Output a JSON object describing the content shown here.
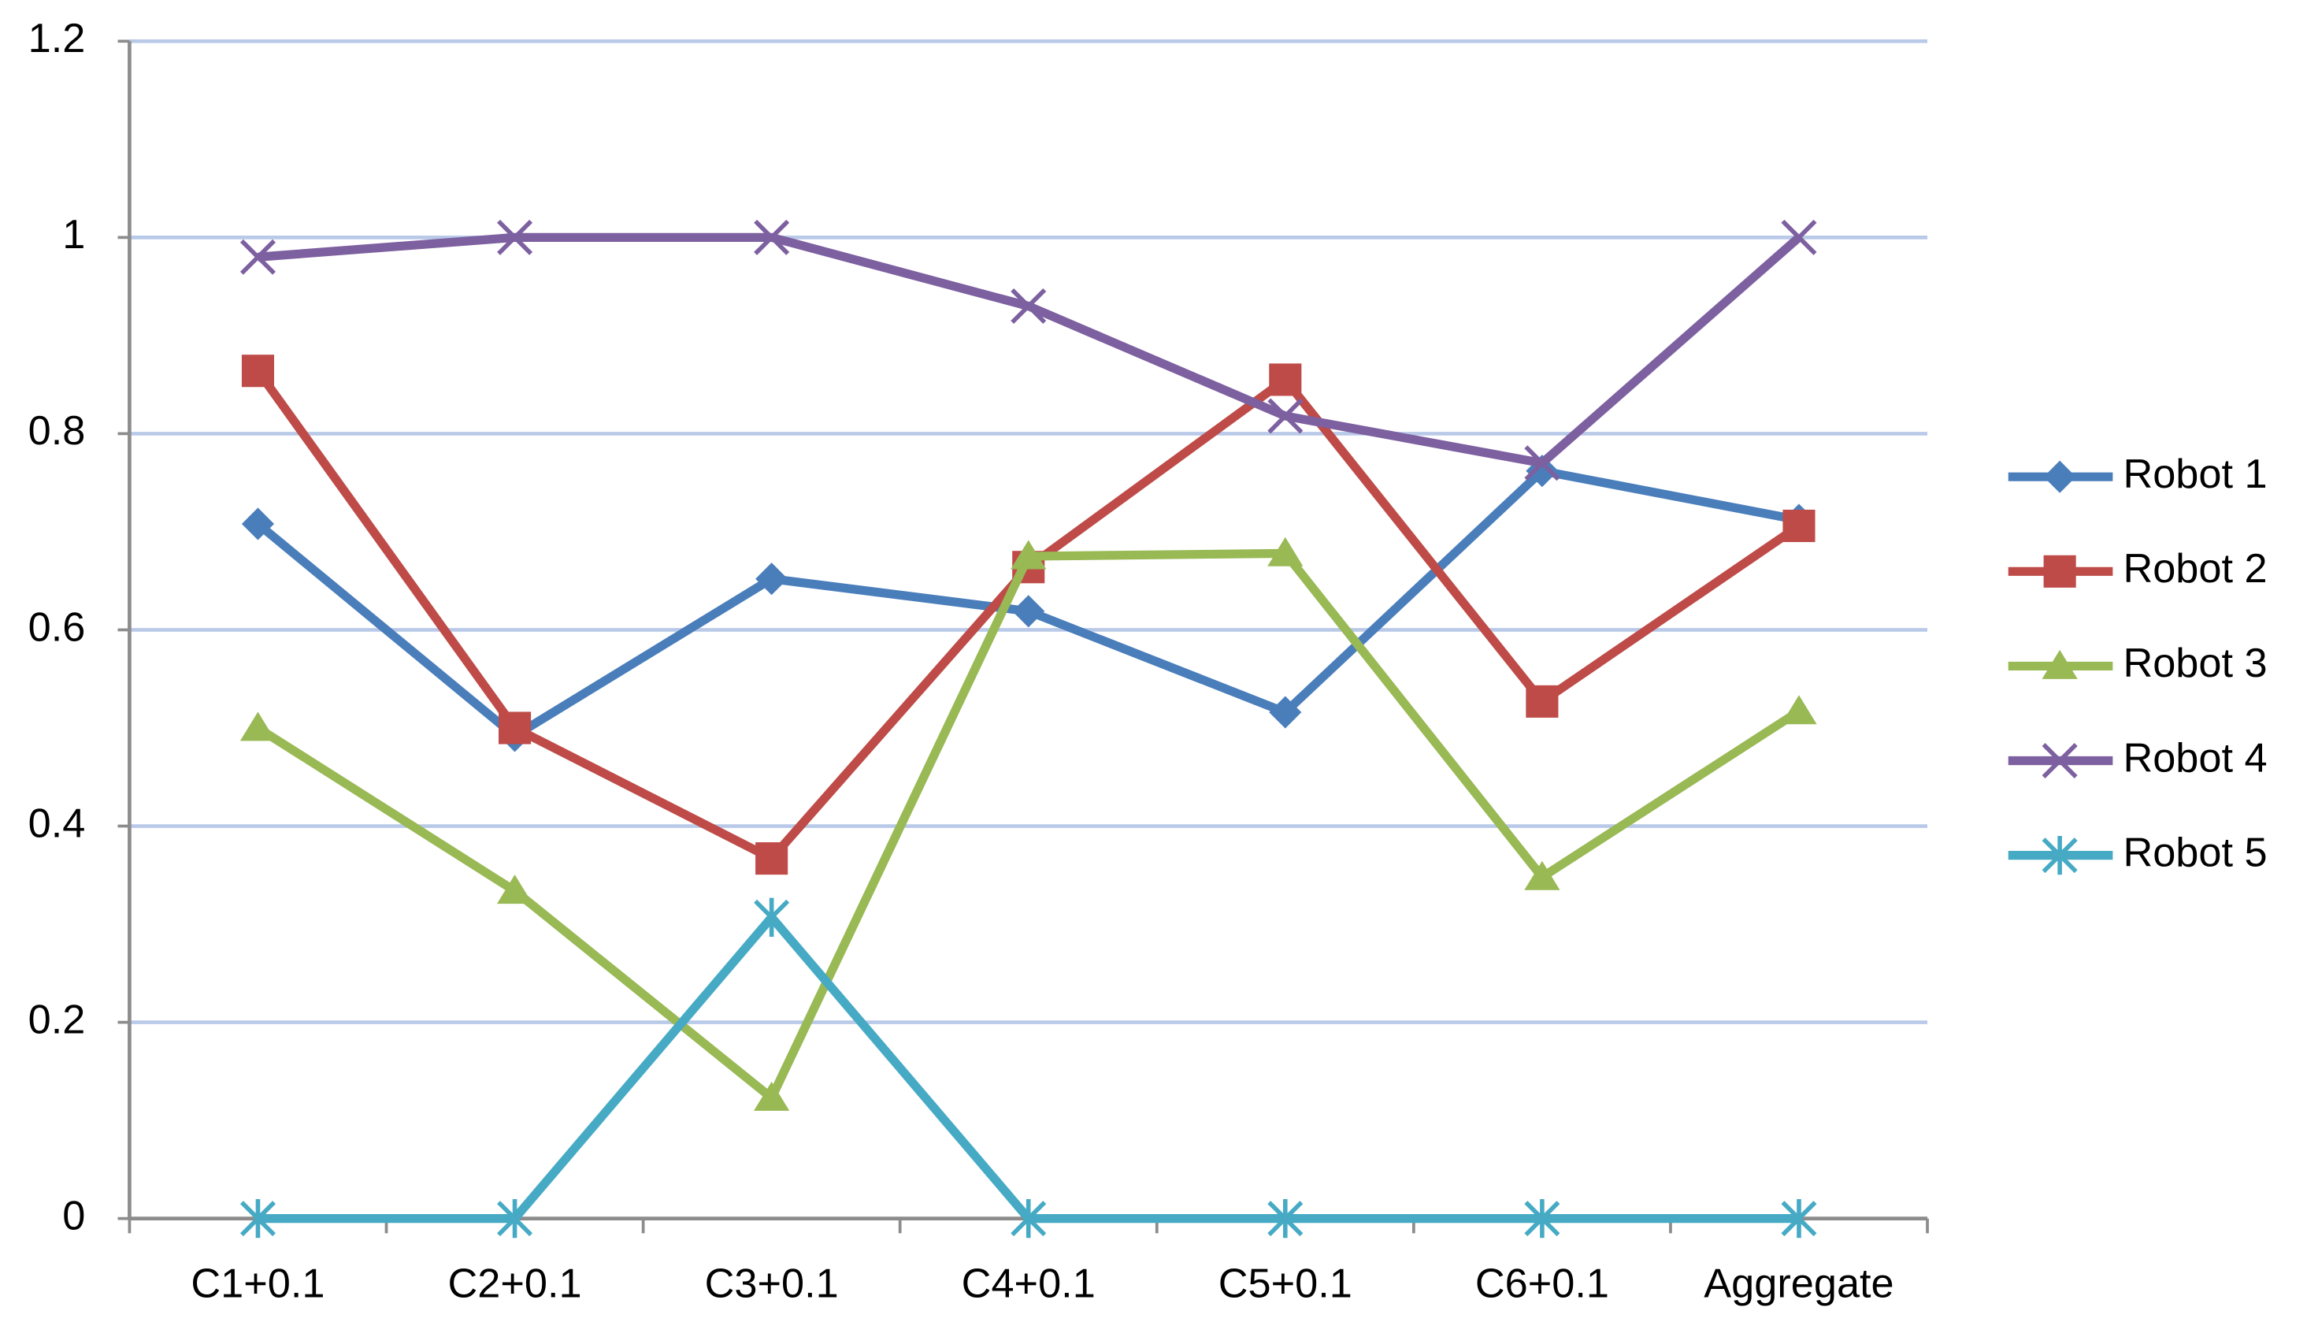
{
  "chart_data": {
    "type": "line",
    "categories": [
      "C1+0.1",
      "C2+0.1",
      "C3+0.1",
      "C4+0.1",
      "C5+0.1",
      "C6+0.1",
      "Aggregate"
    ],
    "series": [
      {
        "name": "Robot 1",
        "color": "#4a7ebb",
        "marker": "diamond",
        "values": [
          0.708,
          0.492,
          0.652,
          0.619,
          0.516,
          0.762,
          0.712
        ]
      },
      {
        "name": "Robot 2",
        "color": "#be4b48",
        "marker": "square",
        "values": [
          0.864,
          0.5,
          0.367,
          0.664,
          0.855,
          0.527,
          0.706
        ]
      },
      {
        "name": "Robot 3",
        "color": "#98b954",
        "marker": "triangle",
        "values": [
          0.5,
          0.334,
          0.123,
          0.675,
          0.678,
          0.348,
          0.517
        ]
      },
      {
        "name": "Robot 4",
        "color": "#7d60a0",
        "marker": "x",
        "values": [
          0.98,
          1,
          1,
          0.93,
          0.818,
          0.77,
          1
        ]
      },
      {
        "name": "Robot 5",
        "color": "#46aac5",
        "marker": "asterisk",
        "values": [
          0,
          0,
          0.307,
          0,
          0,
          0,
          0
        ]
      }
    ],
    "ylim": [
      0,
      1.2
    ],
    "yticks": [
      0,
      0.2,
      0.4,
      0.6,
      0.8,
      1,
      1.2
    ],
    "grid": true,
    "grid_color": "#b9c9e8",
    "axis_color": "#8c8c8c",
    "legend": "right"
  }
}
